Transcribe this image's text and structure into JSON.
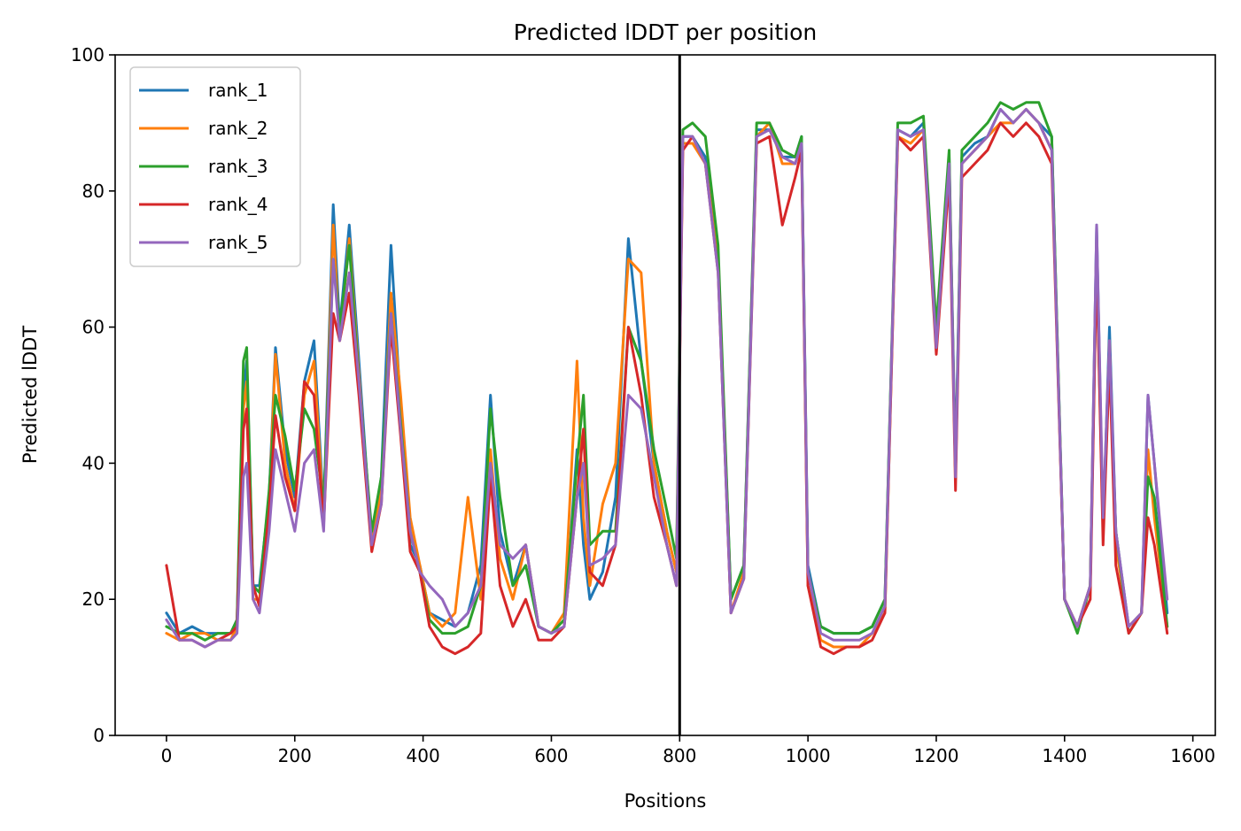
{
  "chart_data": {
    "type": "line",
    "title": "Predicted lDDT per position",
    "xlabel": "Positions",
    "ylabel": "Predicted lDDT",
    "xlim": [
      -80,
      1635
    ],
    "ylim": [
      0,
      100
    ],
    "xticks": [
      0,
      200,
      400,
      600,
      800,
      1000,
      1200,
      1400,
      1600
    ],
    "yticks": [
      0,
      20,
      40,
      60,
      80,
      100
    ],
    "grid": false,
    "legend": "top-left",
    "vline": 800,
    "x": [
      0,
      20,
      40,
      60,
      80,
      100,
      110,
      120,
      125,
      135,
      145,
      160,
      170,
      185,
      200,
      215,
      230,
      245,
      260,
      270,
      285,
      300,
      320,
      335,
      350,
      365,
      380,
      395,
      410,
      430,
      450,
      470,
      490,
      505,
      520,
      540,
      560,
      580,
      600,
      620,
      640,
      650,
      660,
      680,
      700,
      720,
      740,
      760,
      780,
      795,
      805,
      820,
      840,
      860,
      880,
      900,
      920,
      940,
      960,
      980,
      990,
      1000,
      1020,
      1040,
      1060,
      1080,
      1100,
      1120,
      1140,
      1160,
      1180,
      1200,
      1220,
      1230,
      1240,
      1260,
      1280,
      1300,
      1320,
      1340,
      1360,
      1380,
      1400,
      1420,
      1440,
      1450,
      1460,
      1470,
      1480,
      1500,
      1520,
      1530,
      1540,
      1560
    ],
    "series": [
      {
        "name": "rank_1",
        "color": "#1f77b4",
        "values": [
          18,
          15,
          16,
          15,
          15,
          15,
          17,
          50,
          55,
          22,
          22,
          35,
          57,
          42,
          35,
          52,
          58,
          33,
          78,
          60,
          75,
          55,
          28,
          38,
          72,
          48,
          28,
          25,
          18,
          17,
          16,
          18,
          25,
          50,
          30,
          22,
          28,
          16,
          15,
          16,
          42,
          28,
          20,
          24,
          35,
          73,
          55,
          40,
          30,
          24,
          88,
          88,
          85,
          70,
          20,
          25,
          89,
          89,
          85,
          85,
          88,
          25,
          16,
          15,
          15,
          15,
          16,
          20,
          89,
          88,
          90,
          57,
          85,
          40,
          85,
          87,
          88,
          92,
          90,
          92,
          90,
          88,
          20,
          16,
          22,
          75,
          30,
          60,
          30,
          16,
          18,
          50,
          40,
          18
        ]
      },
      {
        "name": "rank_2",
        "color": "#ff7f0e",
        "values": [
          15,
          14,
          15,
          15,
          14,
          14,
          16,
          48,
          52,
          20,
          20,
          34,
          56,
          40,
          33,
          50,
          55,
          32,
          75,
          58,
          73,
          53,
          28,
          36,
          65,
          50,
          32,
          25,
          18,
          16,
          18,
          35,
          20,
          42,
          26,
          20,
          28,
          16,
          15,
          18,
          55,
          32,
          22,
          34,
          40,
          70,
          68,
          40,
          30,
          24,
          87,
          87,
          84,
          70,
          18,
          24,
          88,
          90,
          84,
          84,
          87,
          22,
          14,
          13,
          13,
          13,
          15,
          18,
          88,
          87,
          89,
          58,
          84,
          38,
          84,
          86,
          88,
          90,
          90,
          92,
          90,
          86,
          20,
          16,
          22,
          73,
          30,
          58,
          28,
          16,
          18,
          42,
          32,
          16
        ]
      },
      {
        "name": "rank_3",
        "color": "#2ca02c",
        "values": [
          16,
          15,
          15,
          14,
          15,
          15,
          17,
          55,
          57,
          22,
          21,
          36,
          50,
          44,
          36,
          48,
          45,
          34,
          70,
          60,
          72,
          52,
          30,
          38,
          62,
          46,
          30,
          24,
          17,
          15,
          15,
          16,
          22,
          48,
          35,
          22,
          25,
          16,
          15,
          17,
          40,
          50,
          28,
          30,
          30,
          60,
          55,
          42,
          33,
          26,
          89,
          90,
          88,
          72,
          20,
          25,
          90,
          90,
          86,
          85,
          88,
          24,
          16,
          15,
          15,
          15,
          16,
          20,
          90,
          90,
          91,
          60,
          86,
          38,
          86,
          88,
          90,
          93,
          92,
          93,
          93,
          88,
          20,
          15,
          22,
          70,
          30,
          55,
          30,
          15,
          18,
          38,
          35,
          16
        ]
      },
      {
        "name": "rank_4",
        "color": "#d62728",
        "values": [
          25,
          14,
          14,
          13,
          14,
          15,
          16,
          45,
          48,
          22,
          19,
          33,
          47,
          38,
          33,
          52,
          50,
          31,
          62,
          58,
          65,
          50,
          27,
          34,
          60,
          44,
          27,
          24,
          16,
          13,
          12,
          13,
          15,
          38,
          22,
          16,
          20,
          14,
          14,
          16,
          35,
          45,
          24,
          22,
          28,
          60,
          50,
          35,
          28,
          22,
          86,
          88,
          84,
          68,
          18,
          23,
          87,
          88,
          75,
          82,
          86,
          22,
          13,
          12,
          13,
          13,
          14,
          18,
          88,
          86,
          88,
          56,
          82,
          36,
          82,
          84,
          86,
          90,
          88,
          90,
          88,
          84,
          20,
          16,
          20,
          70,
          28,
          55,
          25,
          15,
          18,
          32,
          28,
          15
        ]
      },
      {
        "name": "rank_5",
        "color": "#9467bd",
        "values": [
          17,
          14,
          14,
          13,
          14,
          14,
          15,
          38,
          40,
          20,
          18,
          30,
          42,
          36,
          30,
          40,
          42,
          30,
          70,
          58,
          68,
          52,
          28,
          34,
          62,
          45,
          30,
          24,
          22,
          20,
          16,
          18,
          22,
          40,
          28,
          26,
          28,
          16,
          15,
          16,
          35,
          40,
          25,
          26,
          28,
          50,
          48,
          38,
          28,
          22,
          88,
          88,
          84,
          68,
          18,
          23,
          88,
          89,
          85,
          84,
          87,
          24,
          15,
          14,
          14,
          14,
          15,
          19,
          89,
          88,
          89,
          57,
          84,
          38,
          84,
          86,
          88,
          92,
          90,
          92,
          90,
          86,
          20,
          16,
          22,
          75,
          32,
          58,
          30,
          16,
          18,
          50,
          40,
          20
        ]
      }
    ]
  }
}
